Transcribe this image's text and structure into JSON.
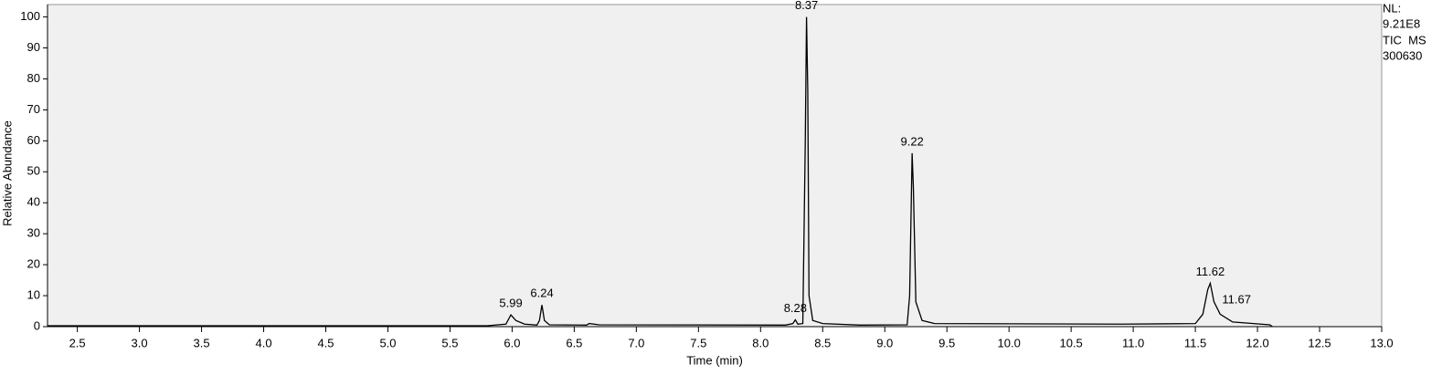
{
  "chart_data": {
    "type": "line",
    "x_label": "Time (min)",
    "y_label": "Relative Abundance",
    "info": [
      "NL:",
      "9.21E8",
      "TIC  MS",
      "300630"
    ],
    "xlim": [
      2.26,
      13.0
    ],
    "ylim": [
      0,
      104
    ],
    "xticks": [
      2.5,
      {
        "value": 3,
        "label": "3.0"
      },
      3.5,
      {
        "value": 4,
        "label": "4.0"
      },
      4.5,
      {
        "value": 5,
        "label": "5.0"
      },
      5.5,
      {
        "value": 6,
        "label": "6.0"
      },
      6.5,
      {
        "value": 7,
        "label": "7.0"
      },
      7.5,
      {
        "value": 8,
        "label": "8.0"
      },
      8.5,
      {
        "value": 9,
        "label": "9.0"
      },
      9.5,
      {
        "value": 10,
        "label": "10.0"
      },
      10.5,
      {
        "value": 11,
        "label": "11.0"
      },
      11.5,
      {
        "value": 12,
        "label": "12.0"
      },
      12.5,
      {
        "value": 13,
        "label": "13.0"
      }
    ],
    "yticks": [
      0,
      10,
      20,
      30,
      40,
      50,
      60,
      70,
      80,
      90,
      100
    ],
    "series": [
      {
        "color": "#000000",
        "x": [
          2.26,
          5.8,
          5.95,
          5.99,
          6.03,
          6.1,
          6.2,
          6.22,
          6.24,
          6.26,
          6.3,
          6.6,
          6.62,
          6.7,
          8.2,
          8.26,
          8.28,
          8.3,
          8.34,
          8.36,
          8.37,
          8.38,
          8.39,
          8.42,
          8.5,
          8.8,
          9.18,
          9.2,
          9.22,
          9.23,
          9.25,
          9.3,
          9.4,
          10.9,
          11.5,
          11.56,
          11.6,
          11.62,
          11.65,
          11.7,
          11.8,
          12.1,
          12.12
        ],
        "values": [
          0.3,
          0.3,
          0.8,
          3.8,
          2,
          0.8,
          0.5,
          2,
          7,
          2,
          0.6,
          0.5,
          1,
          0.6,
          0.5,
          1,
          2.2,
          0.8,
          1,
          60,
          100,
          76,
          10,
          2,
          1,
          0.5,
          0.6,
          10,
          56,
          45,
          8,
          2,
          1,
          0.8,
          1,
          4,
          12,
          14,
          8,
          4,
          1.5,
          0.6,
          0
        ]
      }
    ],
    "peaks": [
      {
        "x": 5.99,
        "y": 3.8
      },
      {
        "x": 6.24,
        "y": 7
      },
      {
        "x": 8.28,
        "y": 2.2
      },
      {
        "x": 8.37,
        "y": 100
      },
      {
        "x": 9.22,
        "y": 56
      },
      {
        "x": 11.62,
        "y": 14
      },
      {
        "x": 11.67,
        "y": 5
      }
    ]
  }
}
